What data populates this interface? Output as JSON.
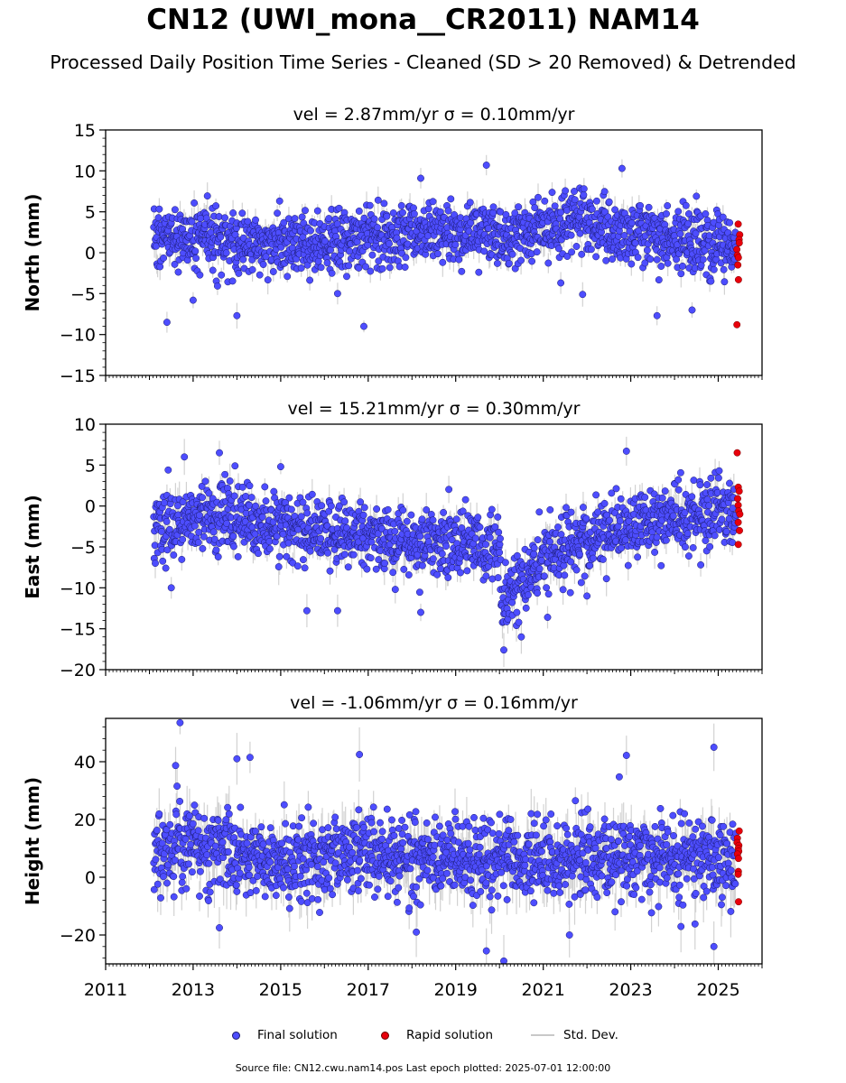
{
  "title": "CN12 (UWI_mona__CR2011) NAM14",
  "subtitle": "Processed Daily Position Time Series - Cleaned (SD > 20 Removed) & Detrended",
  "footer": "Source file: CN12.cwu.nam14.pos  Last epoch plotted: 2025-07-01 12:00:00",
  "legend": {
    "final": "Final solution",
    "rapid": "Rapid solution",
    "sd": "Std. Dev."
  },
  "colors": {
    "final": "#4d4dff",
    "final_edge": "#1a1a6e",
    "rapid": "#e8000b",
    "rapid_edge": "#6e0000",
    "sd": "#c8c8c8"
  },
  "chart_data": [
    {
      "type": "scatter",
      "component": "North",
      "title": "vel = 2.87mm/yr   σ = 0.10mm/yr",
      "ylabel": "North (mm)",
      "xlim": [
        2011,
        2026
      ],
      "ylim": [
        -15,
        15
      ],
      "yticks": [
        -15,
        -10,
        -5,
        0,
        5,
        10,
        15
      ],
      "xticks": [
        2011,
        2013,
        2015,
        2017,
        2019,
        2021,
        2023,
        2025
      ],
      "x_range_final": [
        2012.1,
        2025.4
      ],
      "x_range_rapid": [
        2025.42,
        2025.5
      ],
      "trend": [
        [
          2012.1,
          1.8
        ],
        [
          2013.0,
          2.0
        ],
        [
          2014.0,
          1.0
        ],
        [
          2015.0,
          1.0
        ],
        [
          2016.0,
          1.0
        ],
        [
          2017.0,
          2.0
        ],
        [
          2018.0,
          2.5
        ],
        [
          2019.0,
          2.5
        ],
        [
          2020.0,
          2.5
        ],
        [
          2021.0,
          2.5
        ],
        [
          2021.7,
          4.5
        ],
        [
          2022.5,
          2.5
        ],
        [
          2023.5,
          2.0
        ],
        [
          2024.5,
          1.0
        ],
        [
          2025.4,
          0.5
        ]
      ],
      "scatter_sd": 1.9,
      "outliers": [
        [
          2012.4,
          -8.5
        ],
        [
          2013.0,
          -5.8
        ],
        [
          2014.0,
          -7.7
        ],
        [
          2016.3,
          -5.0
        ],
        [
          2016.9,
          -9.0
        ],
        [
          2018.2,
          9.1
        ],
        [
          2019.7,
          10.7
        ],
        [
          2021.4,
          -3.7
        ],
        [
          2021.9,
          -5.1
        ],
        [
          2022.8,
          10.3
        ],
        [
          2023.6,
          -7.7
        ],
        [
          2024.4,
          -7.0
        ],
        [
          2024.5,
          6.9
        ]
      ],
      "rapid_values": [
        3.5,
        2.2,
        1.6,
        1.2,
        0.4,
        -0.3,
        -0.6,
        -1.5,
        -3.3,
        -8.8
      ],
      "sd_half_len": 1.2
    },
    {
      "type": "scatter",
      "component": "East",
      "title": "vel = 15.21mm/yr   σ = 0.30mm/yr",
      "ylabel": "East (mm)",
      "xlim": [
        2011,
        2026
      ],
      "ylim": [
        -20,
        10
      ],
      "yticks": [
        -20,
        -15,
        -10,
        -5,
        0,
        5,
        10
      ],
      "xticks": [
        2011,
        2013,
        2015,
        2017,
        2019,
        2021,
        2023,
        2025
      ],
      "x_range_final": [
        2012.1,
        2025.4
      ],
      "x_range_rapid": [
        2025.42,
        2025.5
      ],
      "trend": [
        [
          2012.1,
          -2.5
        ],
        [
          2013.0,
          -1.5
        ],
        [
          2014.0,
          -1.5
        ],
        [
          2015.0,
          -2.5
        ],
        [
          2016.0,
          -3.0
        ],
        [
          2017.0,
          -3.5
        ],
        [
          2018.0,
          -4.0
        ],
        [
          2019.0,
          -4.5
        ],
        [
          2020.0,
          -5.0
        ],
        [
          2020.05,
          -12.0
        ],
        [
          2020.5,
          -9.0
        ],
        [
          2021.0,
          -6.5
        ],
        [
          2022.0,
          -4.0
        ],
        [
          2023.0,
          -2.5
        ],
        [
          2024.0,
          -1.5
        ],
        [
          2025.4,
          -0.5
        ]
      ],
      "scatter_sd": 2.1,
      "outliers": [
        [
          2012.5,
          -10.0
        ],
        [
          2012.8,
          6.0
        ],
        [
          2013.6,
          6.5
        ],
        [
          2015.0,
          4.8
        ],
        [
          2015.6,
          -12.8
        ],
        [
          2016.3,
          -12.8
        ],
        [
          2018.2,
          -13.0
        ],
        [
          2020.1,
          -17.6
        ],
        [
          2020.5,
          -16.0
        ],
        [
          2021.1,
          -13.6
        ],
        [
          2022.0,
          -11.0
        ],
        [
          2022.9,
          6.7
        ],
        [
          2024.6,
          -7.2
        ]
      ],
      "rapid_values": [
        6.5,
        2.3,
        1.8,
        0.9,
        0.1,
        -0.6,
        -1.0,
        -2.0,
        -3.0,
        -4.7
      ],
      "sd_half_len": 1.5
    },
    {
      "type": "scatter",
      "component": "Height",
      "title": "vel = -1.06mm/yr   σ = 0.16mm/yr",
      "ylabel": "Height (mm)",
      "xlim": [
        2011,
        2026
      ],
      "ylim": [
        -30,
        55
      ],
      "yticks": [
        -20,
        0,
        20,
        40
      ],
      "xticks": [
        2011,
        2013,
        2015,
        2017,
        2019,
        2021,
        2023,
        2025
      ],
      "x_range_final": [
        2012.1,
        2025.4
      ],
      "x_range_rapid": [
        2025.42,
        2025.5
      ],
      "trend": [
        [
          2012.1,
          8.0
        ],
        [
          2013.0,
          11.0
        ],
        [
          2014.0,
          9.0
        ],
        [
          2015.0,
          7.0
        ],
        [
          2016.0,
          7.0
        ],
        [
          2017.0,
          8.0
        ],
        [
          2018.0,
          6.0
        ],
        [
          2019.0,
          7.0
        ],
        [
          2020.0,
          6.0
        ],
        [
          2021.0,
          5.0
        ],
        [
          2022.0,
          6.0
        ],
        [
          2023.0,
          8.0
        ],
        [
          2024.0,
          7.0
        ],
        [
          2025.4,
          8.0
        ]
      ],
      "scatter_sd": 7.0,
      "outliers": [
        [
          2012.7,
          53.5
        ],
        [
          2012.6,
          38.7
        ],
        [
          2014.0,
          41.0
        ],
        [
          2014.3,
          41.5
        ],
        [
          2016.8,
          42.5
        ],
        [
          2019.7,
          -25.5
        ],
        [
          2020.1,
          -29.0
        ],
        [
          2021.6,
          -20.0
        ],
        [
          2022.9,
          42.2
        ],
        [
          2024.9,
          45.0
        ],
        [
          2024.9,
          -24.0
        ],
        [
          2013.6,
          -17.5
        ],
        [
          2018.1,
          -19.0
        ]
      ],
      "rapid_values": [
        16.0,
        13.5,
        12.0,
        11.0,
        10.0,
        9.0,
        8.0,
        6.5,
        2.0,
        1.0,
        -8.5
      ],
      "sd_half_len": 6.5
    }
  ]
}
